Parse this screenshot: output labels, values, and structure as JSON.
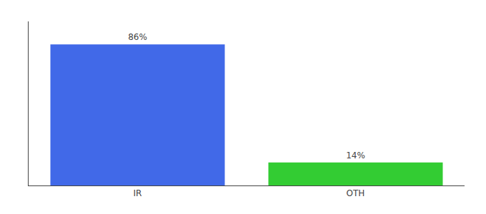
{
  "chart_data": {
    "type": "bar",
    "categories": [
      "IR",
      "OTH"
    ],
    "values": [
      86,
      14
    ],
    "value_labels": [
      "86%",
      "14%"
    ],
    "colors": [
      "#4169e8",
      "#33cc33"
    ],
    "ylim": [
      0,
      100
    ],
    "grid": false,
    "data_labels": true,
    "tick_labels": "x"
  }
}
